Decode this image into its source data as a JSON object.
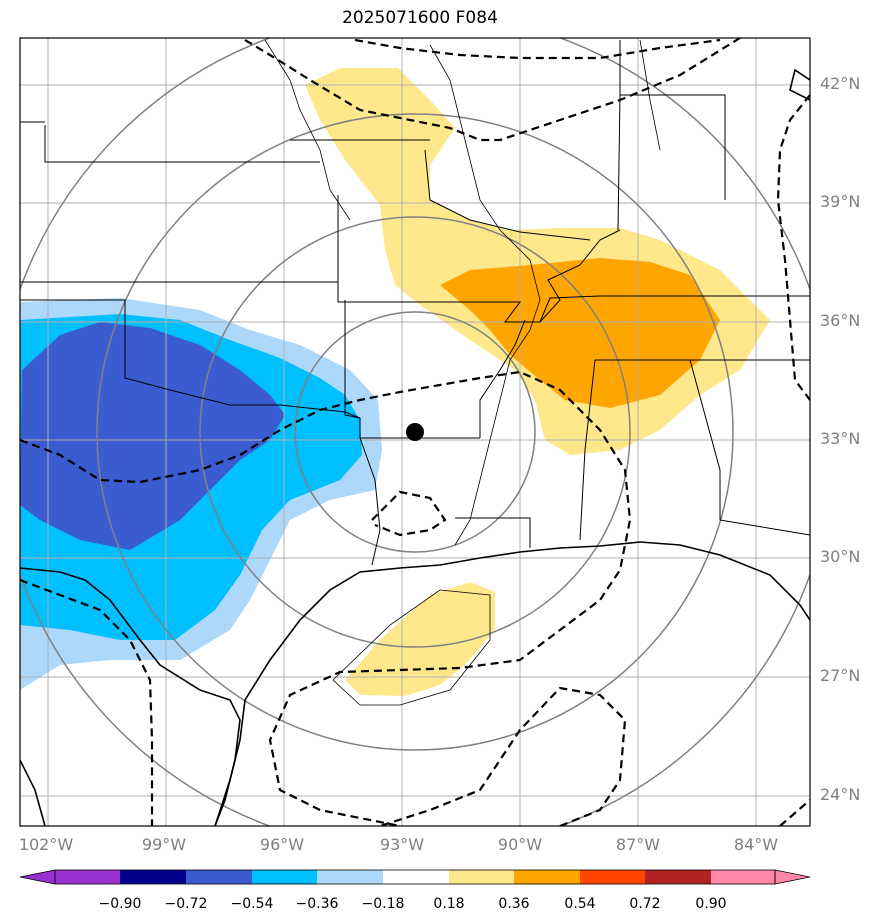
{
  "title": "2025071600 F084",
  "lat_labels": [
    "42°N",
    "39°N",
    "36°N",
    "33°N",
    "30°N",
    "27°N",
    "24°N"
  ],
  "lon_labels": [
    "102°W",
    "99°W",
    "96°W",
    "93°W",
    "90°W",
    "87°W",
    "84°W"
  ],
  "colorbar": {
    "ticks": [
      "−0.90",
      "−0.72",
      "−0.54",
      "−0.36",
      "−0.18",
      "0.18",
      "0.36",
      "0.54",
      "0.72",
      "0.90"
    ],
    "colors": [
      "#9a31d1",
      "#00008b",
      "#3b5bd1",
      "#00bfff",
      "#add8fa",
      "#ffffff",
      "#ffe88c",
      "#ffa500",
      "#ff4500",
      "#b22222",
      "#ff88aa"
    ]
  },
  "colors": {
    "light_blue": "#add8fa",
    "deep_sky_blue": "#00bfff",
    "royal_blue": "#3b5bd1",
    "light_yellow": "#ffe88c",
    "orange": "#ffa500",
    "grid": "#b0b0b0",
    "range_ring": "#808080"
  },
  "marker": "filled black circle near 33°N 93°W"
}
